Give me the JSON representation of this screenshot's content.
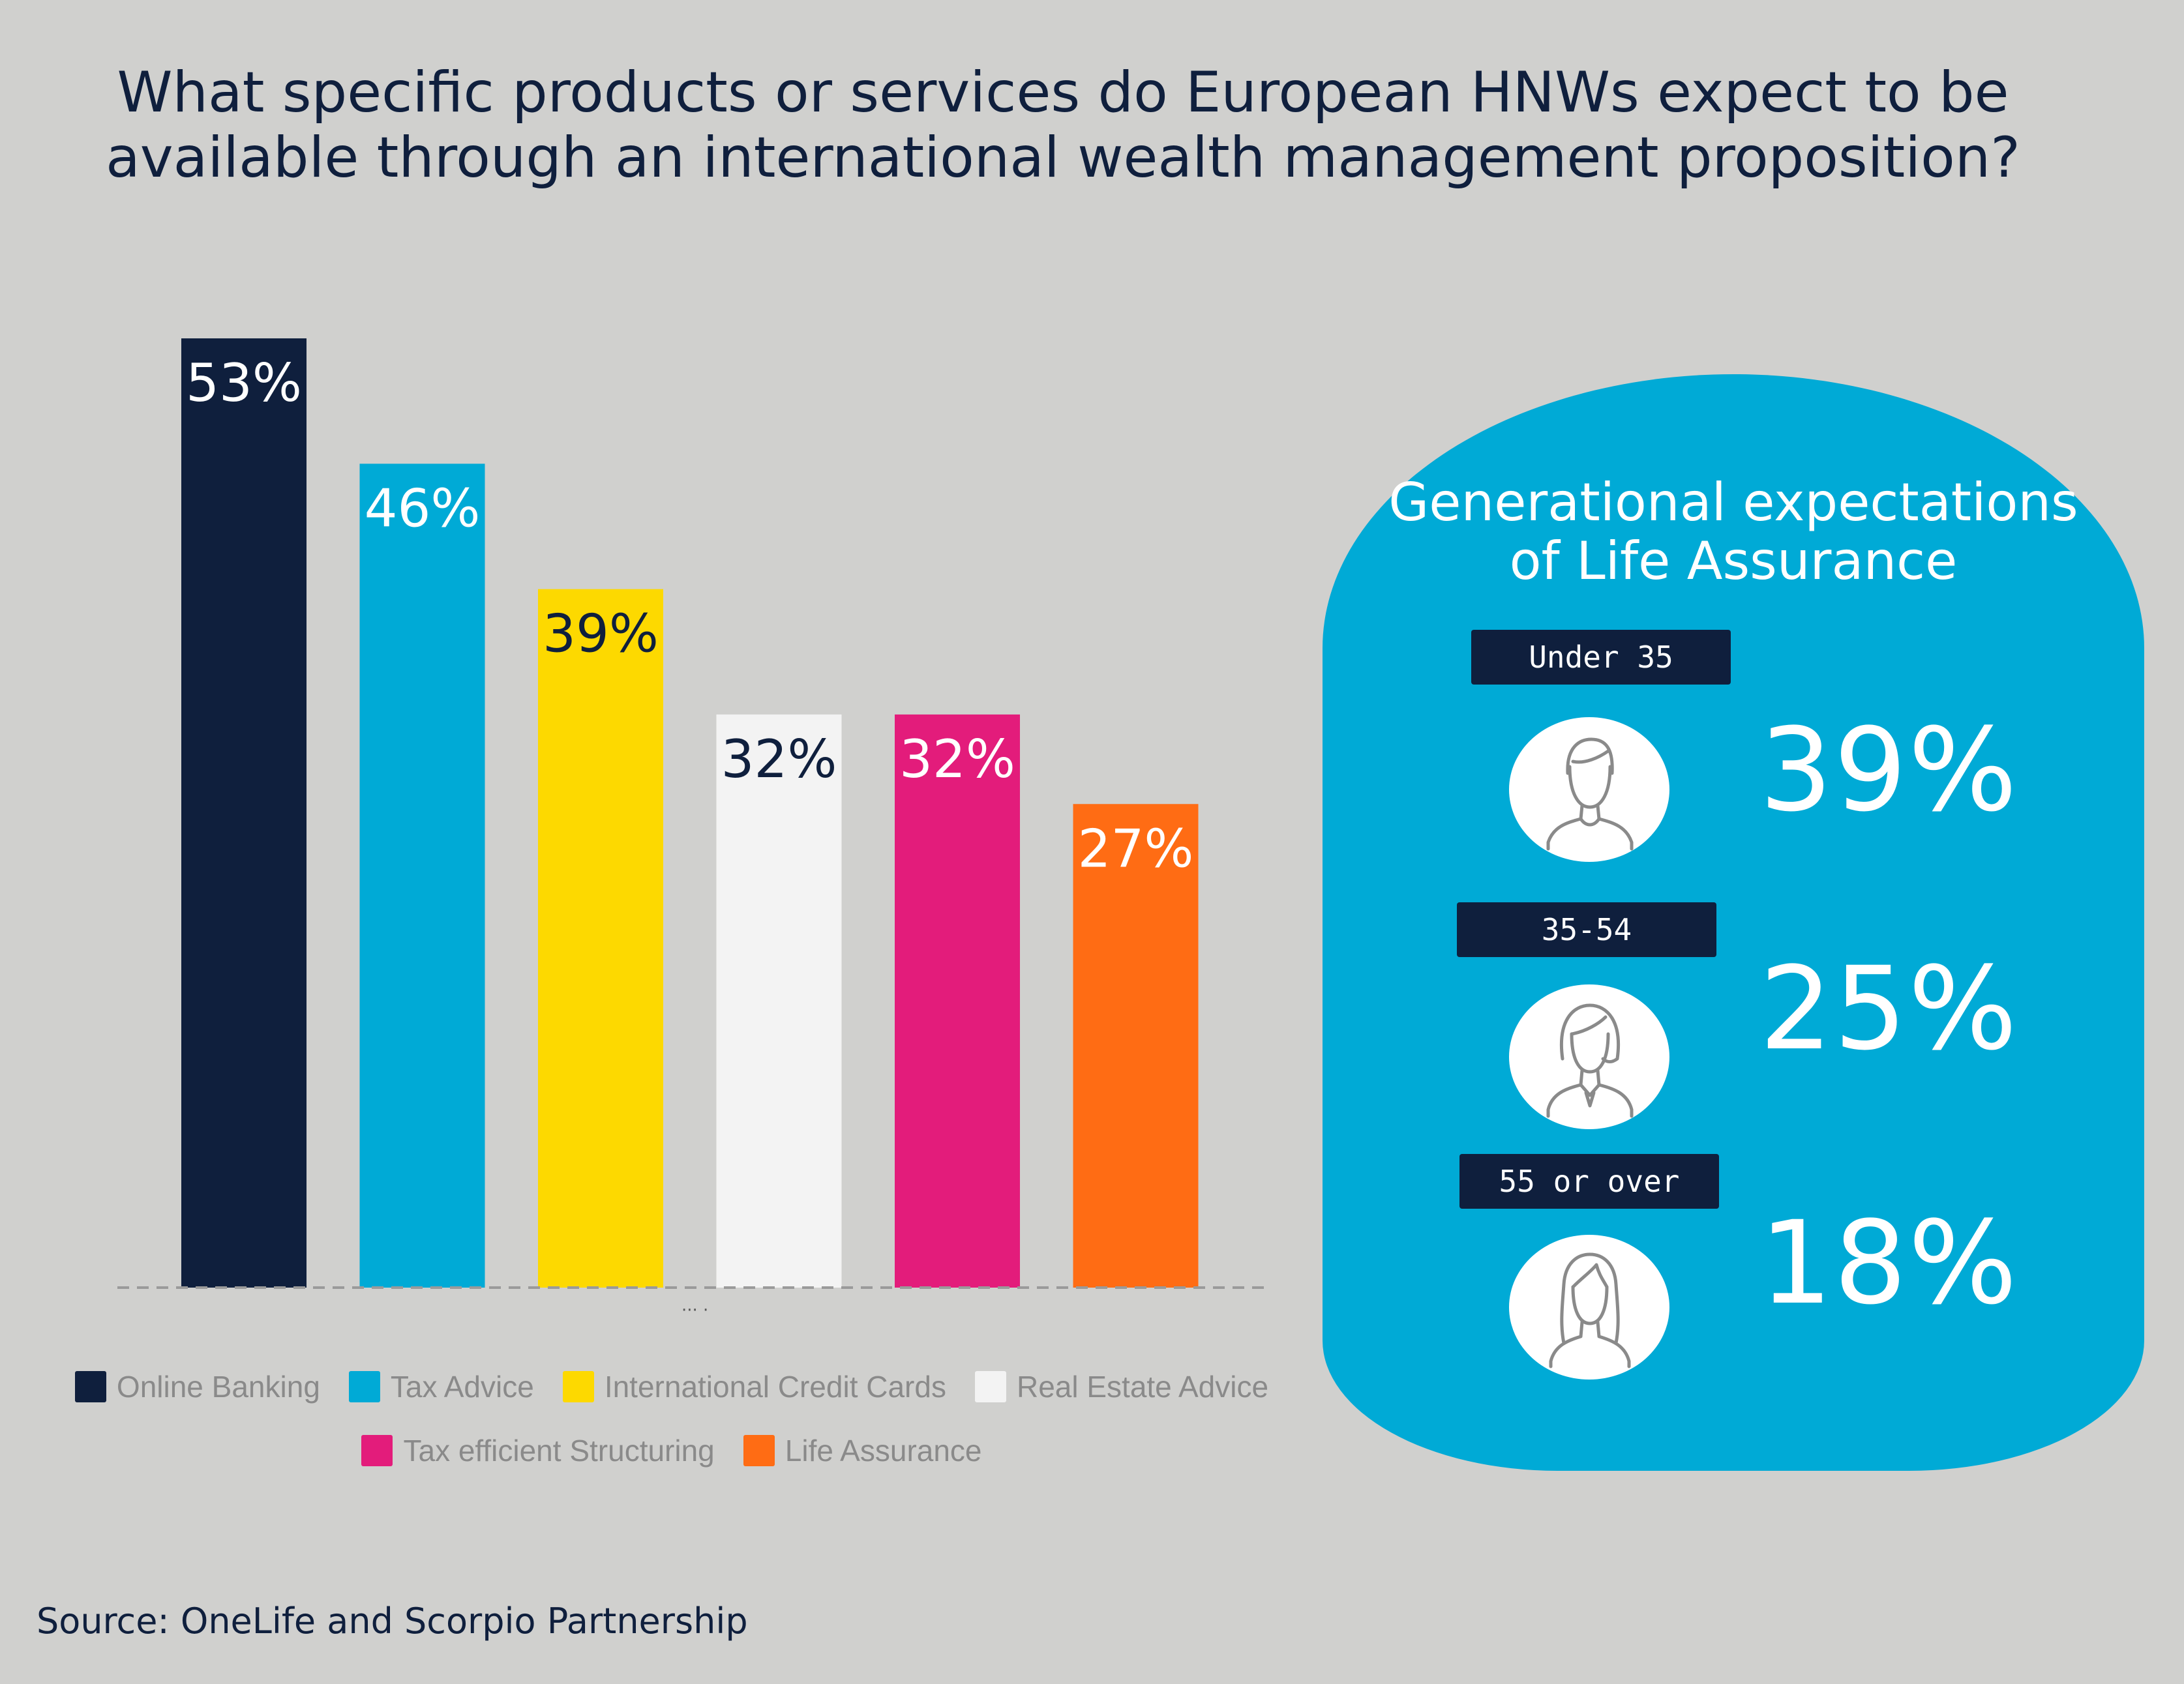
{
  "title_line1": "What specific products or services do European HNWs expect to be",
  "title_line2": "available through an international wealth management proposition?",
  "chart_data": {
    "type": "bar",
    "categories": [
      "Online Banking",
      "Tax Advice",
      "International Credit Cards",
      "Real Estate Advice",
      "Tax efficient Structuring",
      "Life Assurance"
    ],
    "values": [
      53,
      46,
      39,
      32,
      32,
      27
    ],
    "labels": [
      "53%",
      "46%",
      "39%",
      "32%",
      "32%",
      "27%"
    ],
    "colors": [
      "#0f1f3d",
      "#00aad6",
      "#fdd900",
      "#f3f3f3",
      "#e31c7b",
      "#ff6c14"
    ],
    "label_colors": [
      "#ffffff",
      "#ffffff",
      "#0f1f3d",
      "#0f1f3d",
      "#ffffff",
      "#ffffff"
    ],
    "ylim": [
      0,
      53
    ],
    "legend_position": "bottom",
    "grid": false
  },
  "legend": {
    "row1": [
      {
        "label": "Online Banking",
        "color": "#0f1f3d"
      },
      {
        "label": "Tax Advice",
        "color": "#00aad6"
      },
      {
        "label": "International Credit Cards",
        "color": "#fdd900"
      },
      {
        "label": "Real Estate Advice",
        "color": "#f3f3f3"
      }
    ],
    "row2": [
      {
        "label": "Tax efficient Structuring",
        "color": "#e31c7b"
      },
      {
        "label": "Life Assurance",
        "color": "#ff6c14"
      }
    ]
  },
  "source": "Source: OneLife and Scorpio Partnership",
  "generational": {
    "title_line1": "Generational expectations",
    "title_line2": "of Life Assurance",
    "groups": [
      {
        "age": "Under 35",
        "value": "39%",
        "icon": "young-man-icon"
      },
      {
        "age": "35-54",
        "value": "25%",
        "icon": "woman-short-hair-icon"
      },
      {
        "age": "55 or over",
        "value": "18%",
        "icon": "woman-long-hair-icon"
      }
    ]
  }
}
